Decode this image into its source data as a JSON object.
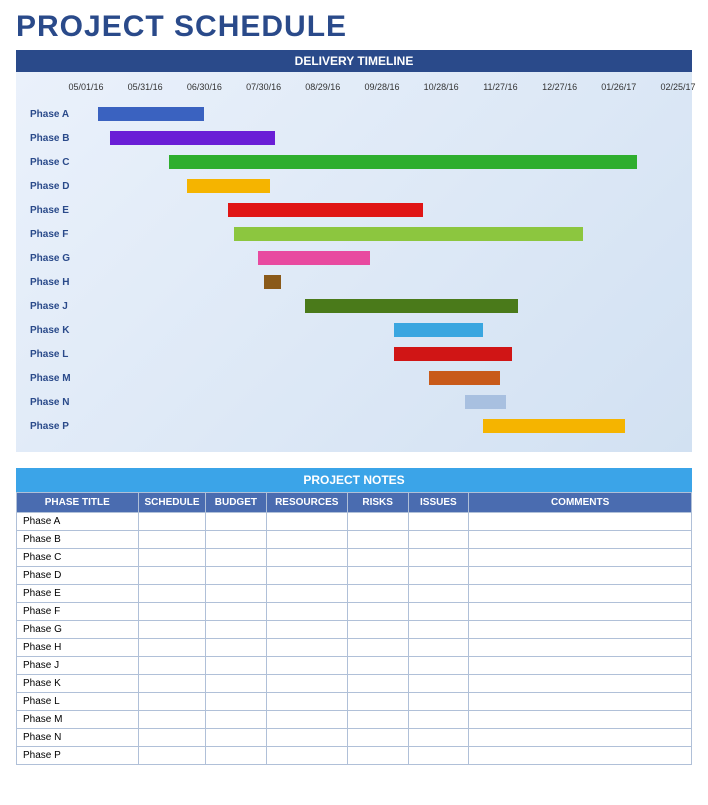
{
  "title": "PROJECT SCHEDULE",
  "timeline": {
    "header": "DELIVERY TIMELINE",
    "chart_type": "gantt",
    "background_gradient": [
      "#eaf1fb",
      "#d2e1f2"
    ],
    "label_color": "#2a4a8a",
    "axis_dates": [
      "05/01/16",
      "05/31/16",
      "06/30/16",
      "07/30/16",
      "08/29/16",
      "09/28/16",
      "10/28/16",
      "11/27/16",
      "12/27/16",
      "01/26/17",
      "02/25/17"
    ],
    "axis_min_pct": 0,
    "axis_max_pct": 100,
    "phases": [
      {
        "label": "Phase A",
        "start_pct": 2,
        "width_pct": 18,
        "color": "#3a62c0"
      },
      {
        "label": "Phase B",
        "start_pct": 4,
        "width_pct": 28,
        "color": "#6a1ed6"
      },
      {
        "label": "Phase C",
        "start_pct": 14,
        "width_pct": 79,
        "color": "#2eae2e"
      },
      {
        "label": "Phase D",
        "start_pct": 17,
        "width_pct": 14,
        "color": "#f5b400"
      },
      {
        "label": "Phase E",
        "start_pct": 24,
        "width_pct": 33,
        "color": "#e01515"
      },
      {
        "label": "Phase F",
        "start_pct": 25,
        "width_pct": 59,
        "color": "#8cc63f"
      },
      {
        "label": "Phase G",
        "start_pct": 29,
        "width_pct": 19,
        "color": "#e84aa0"
      },
      {
        "label": "Phase H",
        "start_pct": 30,
        "width_pct": 3,
        "color": "#8a5a1a"
      },
      {
        "label": "Phase J",
        "start_pct": 37,
        "width_pct": 36,
        "color": "#4a7a1a"
      },
      {
        "label": "Phase K",
        "start_pct": 52,
        "width_pct": 15,
        "color": "#3aa6e0"
      },
      {
        "label": "Phase L",
        "start_pct": 52,
        "width_pct": 20,
        "color": "#d01515"
      },
      {
        "label": "Phase M",
        "start_pct": 58,
        "width_pct": 12,
        "color": "#c85a1a"
      },
      {
        "label": "Phase N",
        "start_pct": 64,
        "width_pct": 7,
        "color": "#a8c0e0"
      },
      {
        "label": "Phase P",
        "start_pct": 67,
        "width_pct": 24,
        "color": "#f5b400"
      }
    ]
  },
  "notes": {
    "header": "PROJECT NOTES",
    "header_bg": "#3ba4e8",
    "th_bg": "#4a6cb0",
    "border_color": "#b0c0d8",
    "columns": [
      {
        "label": "PHASE TITLE",
        "width_pct": 18
      },
      {
        "label": "SCHEDULE",
        "width_pct": 10
      },
      {
        "label": "BUDGET",
        "width_pct": 9
      },
      {
        "label": "RESOURCES",
        "width_pct": 12
      },
      {
        "label": "RISKS",
        "width_pct": 9
      },
      {
        "label": "ISSUES",
        "width_pct": 9
      },
      {
        "label": "COMMENTS",
        "width_pct": 33
      }
    ],
    "rows": [
      {
        "phase": "Phase A",
        "schedule": "",
        "budget": "",
        "resources": "",
        "risks": "",
        "issues": "",
        "comments": ""
      },
      {
        "phase": "Phase B",
        "schedule": "",
        "budget": "",
        "resources": "",
        "risks": "",
        "issues": "",
        "comments": ""
      },
      {
        "phase": "Phase C",
        "schedule": "",
        "budget": "",
        "resources": "",
        "risks": "",
        "issues": "",
        "comments": ""
      },
      {
        "phase": "Phase D",
        "schedule": "",
        "budget": "",
        "resources": "",
        "risks": "",
        "issues": "",
        "comments": ""
      },
      {
        "phase": "Phase E",
        "schedule": "",
        "budget": "",
        "resources": "",
        "risks": "",
        "issues": "",
        "comments": ""
      },
      {
        "phase": "Phase F",
        "schedule": "",
        "budget": "",
        "resources": "",
        "risks": "",
        "issues": "",
        "comments": ""
      },
      {
        "phase": "Phase G",
        "schedule": "",
        "budget": "",
        "resources": "",
        "risks": "",
        "issues": "",
        "comments": ""
      },
      {
        "phase": "Phase H",
        "schedule": "",
        "budget": "",
        "resources": "",
        "risks": "",
        "issues": "",
        "comments": ""
      },
      {
        "phase": "Phase J",
        "schedule": "",
        "budget": "",
        "resources": "",
        "risks": "",
        "issues": "",
        "comments": ""
      },
      {
        "phase": "Phase K",
        "schedule": "",
        "budget": "",
        "resources": "",
        "risks": "",
        "issues": "",
        "comments": ""
      },
      {
        "phase": "Phase L",
        "schedule": "",
        "budget": "",
        "resources": "",
        "risks": "",
        "issues": "",
        "comments": ""
      },
      {
        "phase": "Phase M",
        "schedule": "",
        "budget": "",
        "resources": "",
        "risks": "",
        "issues": "",
        "comments": ""
      },
      {
        "phase": "Phase N",
        "schedule": "",
        "budget": "",
        "resources": "",
        "risks": "",
        "issues": "",
        "comments": ""
      },
      {
        "phase": "Phase P",
        "schedule": "",
        "budget": "",
        "resources": "",
        "risks": "",
        "issues": "",
        "comments": ""
      }
    ]
  }
}
